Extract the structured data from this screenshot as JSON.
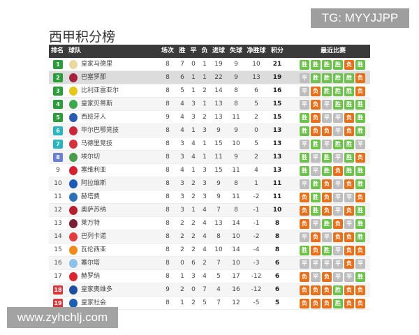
{
  "title": "西甲积分榜",
  "watermarks": {
    "top": "TG: MYYJJPP",
    "bottom": "www.zyhchlj.com"
  },
  "result_labels": {
    "W": "胜",
    "D": "平",
    "L": "负"
  },
  "colors": {
    "champions": "#2a9d3a",
    "europa": "#2bb5c0",
    "conference": "#6b7fd7",
    "relegation": "#d9383a",
    "win": "#6cc24a",
    "draw": "#bdbdbd",
    "loss": "#e8701a"
  },
  "headers": {
    "rank": "排名",
    "team": "球队",
    "played": "场次",
    "won": "胜",
    "drawn": "平",
    "lost": "负",
    "gf": "进球",
    "ga": "失球",
    "gd": "净胜球",
    "pts": "积分",
    "recent": "最近比赛"
  },
  "rows": [
    {
      "rank": "1",
      "zone": "champions",
      "team": "皇家马德里",
      "logo": "#e9d9a0",
      "p": "8",
      "w": "7",
      "d": "0",
      "l": "1",
      "gf": "19",
      "ga": "9",
      "gd": "10",
      "pts": "21",
      "recent": [
        "W",
        "W",
        "W",
        "W",
        "L",
        "W"
      ]
    },
    {
      "rank": "2",
      "zone": "champions",
      "team": "巴塞罗那",
      "logo": "#a5223e",
      "p": "8",
      "w": "6",
      "d": "1",
      "l": "1",
      "gf": "22",
      "ga": "9",
      "gd": "13",
      "pts": "19",
      "recent": [
        "D",
        "W",
        "W",
        "W",
        "W",
        "L"
      ],
      "highlight": true
    },
    {
      "rank": "3",
      "zone": "champions",
      "team": "比利亚雷亚尔",
      "logo": "#e6c619",
      "p": "8",
      "w": "5",
      "d": "1",
      "l": "2",
      "gf": "14",
      "ga": "8",
      "gd": "6",
      "pts": "16",
      "recent": [
        "D",
        "L",
        "W",
        "W",
        "W",
        "L"
      ]
    },
    {
      "rank": "4",
      "zone": "champions",
      "team": "皇家贝蒂斯",
      "logo": "#3ca94a",
      "p": "8",
      "w": "4",
      "d": "3",
      "l": "1",
      "gf": "13",
      "ga": "8",
      "gd": "5",
      "pts": "15",
      "recent": [
        "D",
        "L",
        "D",
        "W",
        "W",
        "W"
      ]
    },
    {
      "rank": "5",
      "zone": "champions",
      "team": "西班牙人",
      "logo": "#2a5db0",
      "p": "9",
      "w": "4",
      "d": "3",
      "l": "2",
      "gf": "13",
      "ga": "11",
      "gd": "2",
      "pts": "15",
      "recent": [
        "W",
        "L",
        "D",
        "D",
        "L",
        "W"
      ]
    },
    {
      "rank": "6",
      "zone": "europa",
      "team": "毕尔巴鄂竞技",
      "logo": "#c8283a",
      "p": "8",
      "w": "4",
      "d": "1",
      "l": "3",
      "gf": "9",
      "ga": "9",
      "gd": "0",
      "pts": "13",
      "recent": [
        "W",
        "L",
        "L",
        "D",
        "L",
        "W"
      ]
    },
    {
      "rank": "7",
      "zone": "europa",
      "team": "马德里竞技",
      "logo": "#d3323f",
      "p": "8",
      "w": "3",
      "d": "4",
      "l": "1",
      "gf": "15",
      "ga": "10",
      "gd": "5",
      "pts": "13",
      "recent": [
        "D",
        "W",
        "D",
        "W",
        "W",
        "D"
      ]
    },
    {
      "rank": "8",
      "zone": "conference",
      "team": "埃尔切",
      "logo": "#4c9b4a",
      "p": "8",
      "w": "3",
      "d": "4",
      "l": "1",
      "gf": "11",
      "ga": "9",
      "gd": "2",
      "pts": "13",
      "recent": [
        "W",
        "D",
        "W",
        "D",
        "W",
        "L"
      ]
    },
    {
      "rank": "9",
      "zone": "",
      "team": "塞维利亚",
      "logo": "#d4202f",
      "p": "8",
      "w": "4",
      "d": "1",
      "l": "3",
      "gf": "15",
      "ga": "11",
      "gd": "4",
      "pts": "13",
      "recent": [
        "W",
        "D",
        "W",
        "L",
        "W",
        "W"
      ]
    },
    {
      "rank": "10",
      "zone": "",
      "team": "阿拉维斯",
      "logo": "#1d59b5",
      "p": "8",
      "w": "3",
      "d": "2",
      "l": "3",
      "gf": "9",
      "ga": "8",
      "gd": "1",
      "pts": "11",
      "recent": [
        "D",
        "W",
        "L",
        "D",
        "L",
        "W"
      ]
    },
    {
      "rank": "11",
      "zone": "",
      "team": "赫塔费",
      "logo": "#2f6fb6",
      "p": "8",
      "w": "3",
      "d": "2",
      "l": "3",
      "gf": "9",
      "ga": "11",
      "gd": "-2",
      "pts": "11",
      "recent": [
        "L",
        "W",
        "L",
        "D",
        "D",
        "L"
      ]
    },
    {
      "rank": "12",
      "zone": "",
      "team": "奥萨苏纳",
      "logo": "#b71f2f",
      "p": "8",
      "w": "3",
      "d": "1",
      "l": "4",
      "gf": "7",
      "ga": "8",
      "gd": "-1",
      "pts": "10",
      "recent": [
        "L",
        "W",
        "L",
        "D",
        "L",
        "W"
      ]
    },
    {
      "rank": "13",
      "zone": "",
      "team": "莱万特",
      "logo": "#7a1d35",
      "p": "8",
      "w": "2",
      "d": "2",
      "l": "4",
      "gf": "13",
      "ga": "14",
      "gd": "-1",
      "pts": "8",
      "recent": [
        "L",
        "D",
        "W",
        "L",
        "D",
        "W"
      ]
    },
    {
      "rank": "14",
      "zone": "",
      "team": "巴列卡诺",
      "logo": "#e33c3c",
      "p": "8",
      "w": "2",
      "d": "2",
      "l": "4",
      "gf": "8",
      "ga": "10",
      "gd": "-2",
      "pts": "8",
      "recent": [
        "D",
        "L",
        "D",
        "L",
        "L",
        "W"
      ]
    },
    {
      "rank": "15",
      "zone": "",
      "team": "瓦伦西亚",
      "logo": "#f08a1c",
      "p": "8",
      "w": "2",
      "d": "2",
      "l": "4",
      "gf": "10",
      "ga": "14",
      "gd": "-4",
      "pts": "8",
      "recent": [
        "W",
        "L",
        "W",
        "D",
        "L",
        "L"
      ]
    },
    {
      "rank": "16",
      "zone": "",
      "team": "塞尔塔",
      "logo": "#8cc1e8",
      "p": "8",
      "w": "0",
      "d": "6",
      "l": "2",
      "gf": "7",
      "ga": "10",
      "gd": "-3",
      "pts": "6",
      "recent": [
        "D",
        "D",
        "D",
        "D",
        "L",
        "D"
      ]
    },
    {
      "rank": "17",
      "zone": "",
      "team": "赫罗纳",
      "logo": "#d9262f",
      "p": "8",
      "w": "1",
      "d": "3",
      "l": "4",
      "gf": "5",
      "ga": "17",
      "gd": "-12",
      "pts": "6",
      "recent": [
        "L",
        "D",
        "L",
        "D",
        "D",
        "W"
      ]
    },
    {
      "rank": "18",
      "zone": "relegation",
      "team": "皇家奥维多",
      "logo": "#1f4fa0",
      "p": "9",
      "w": "2",
      "d": "0",
      "l": "7",
      "gf": "4",
      "ga": "16",
      "gd": "-12",
      "pts": "6",
      "recent": [
        "L",
        "L",
        "L",
        "W",
        "L",
        "L"
      ]
    },
    {
      "rank": "19",
      "zone": "relegation",
      "team": "皇家社会",
      "logo": "#1c5fb5",
      "p": "8",
      "w": "1",
      "d": "2",
      "l": "5",
      "gf": "7",
      "ga": "12",
      "gd": "-5",
      "pts": "5",
      "recent": [
        "L",
        "L",
        "L",
        "W",
        "L",
        "L"
      ]
    }
  ]
}
